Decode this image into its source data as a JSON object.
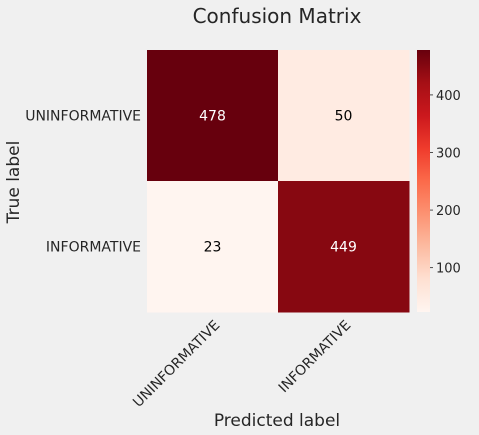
{
  "chart_data": {
    "type": "heatmap",
    "title": "Confusion Matrix",
    "xlabel": "Predicted label",
    "ylabel": "True label",
    "x_categories": [
      "UNINFORMATIVE",
      "INFORMATIVE"
    ],
    "y_categories": [
      "UNINFORMATIVE",
      "INFORMATIVE"
    ],
    "values": [
      [
        478,
        50
      ],
      [
        23,
        449
      ]
    ],
    "colormap": "Reds",
    "colorbar": {
      "ticks": [
        100,
        200,
        300,
        400
      ],
      "range": [
        23,
        478
      ]
    },
    "grid": false
  },
  "colors": {
    "background": "#f0f0f0",
    "text": "#262626",
    "cell_text_light": "#ffffff",
    "cell_text_dark": "#000000"
  }
}
